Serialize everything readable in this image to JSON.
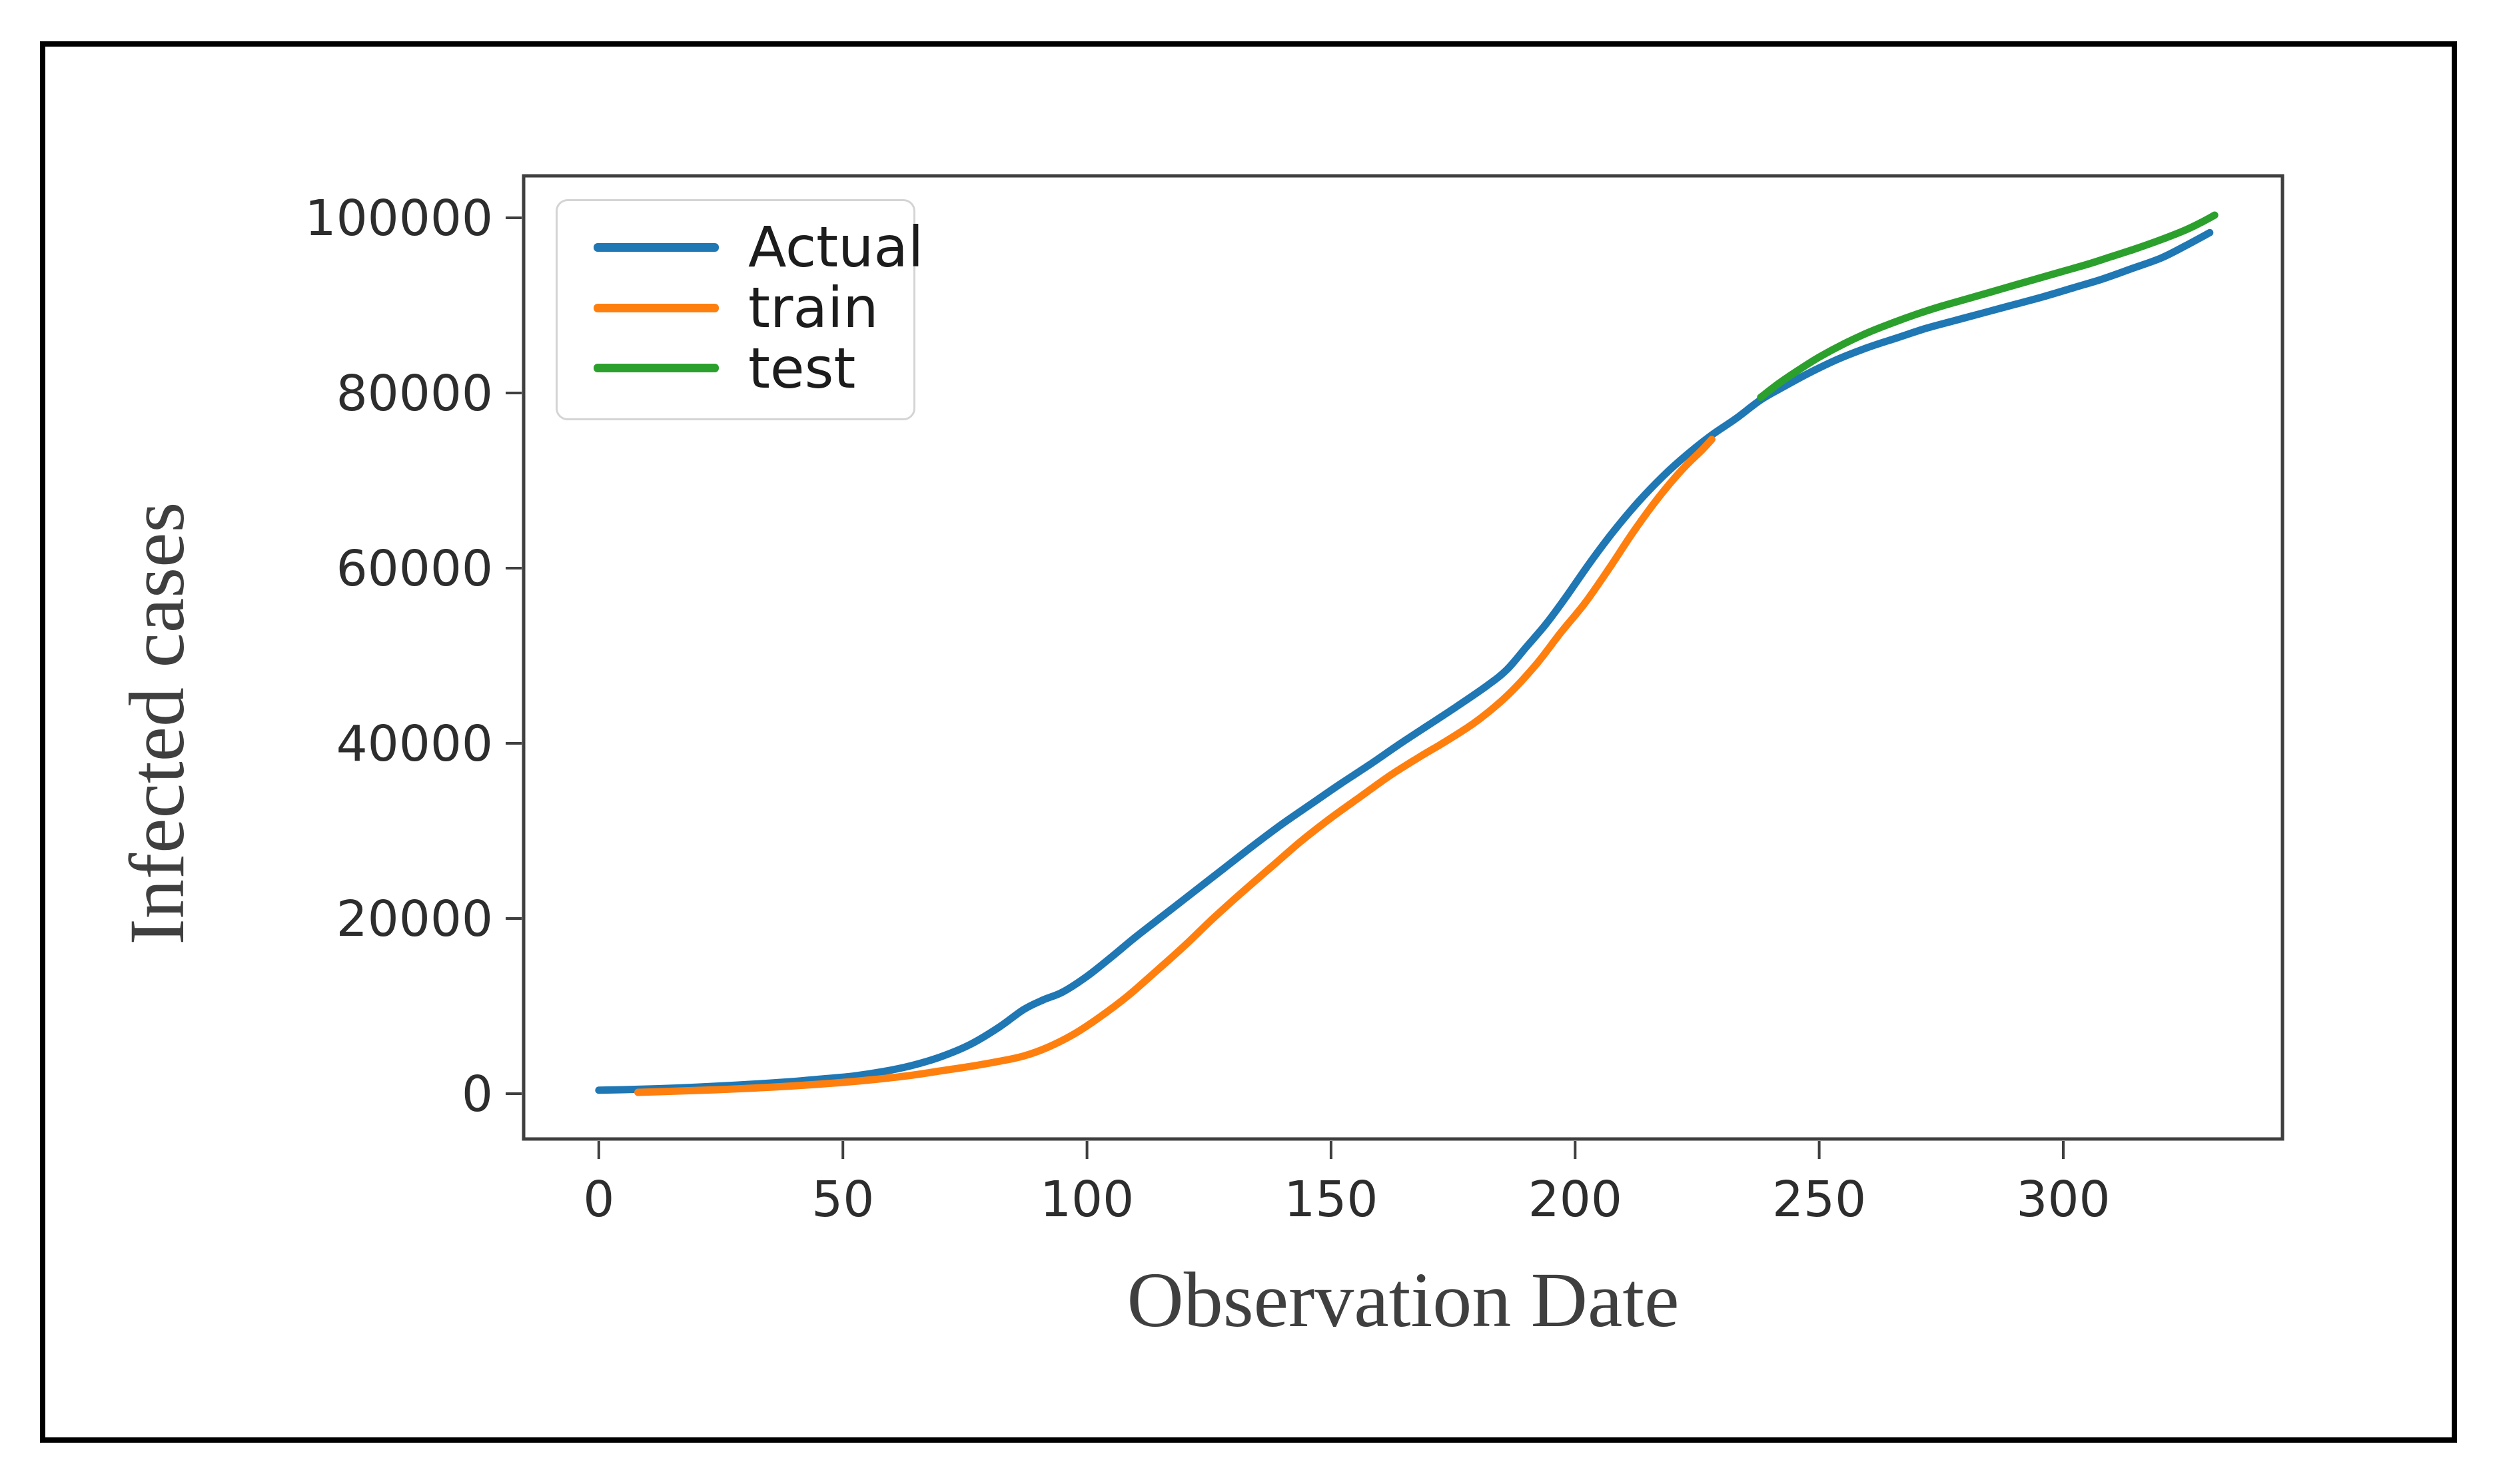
{
  "figure": {
    "background_color": "#ffffff",
    "border_color": "#000000",
    "axis_color": "#3f3f3f",
    "tick_label_color": "#2d2d2d"
  },
  "chart_data": {
    "type": "line",
    "title": "",
    "xlabel": "Observation Date",
    "ylabel": "Infected cases",
    "xlim": [
      -15.4,
      344.9
    ],
    "ylim": [
      -5170,
      104790
    ],
    "xticks": [
      0,
      50,
      100,
      150,
      200,
      250,
      300
    ],
    "yticks": [
      0,
      20000,
      40000,
      60000,
      80000,
      100000
    ],
    "grid": false,
    "legend_position": "upper left",
    "series": [
      {
        "name": "Actual",
        "color": "#1f77b4",
        "x": [
          0,
          8,
          16,
          24,
          32,
          40,
          46,
          52,
          58,
          64,
          70,
          76,
          82,
          87,
          91,
          95,
          100,
          105,
          110,
          116,
          122,
          128,
          134,
          140,
          146,
          152,
          158,
          164,
          170,
          176,
          182,
          186,
          190,
          194,
          198,
          203,
          208,
          213,
          218,
          223,
          228,
          233,
          238,
          243,
          248,
          254,
          260,
          266,
          272,
          278,
          284,
          290,
          296,
          302,
          308,
          314,
          320,
          325,
          330
        ],
        "y": [
          400,
          500,
          650,
          850,
          1100,
          1400,
          1700,
          2000,
          2500,
          3200,
          4200,
          5600,
          7600,
          9600,
          10700,
          11600,
          13400,
          15600,
          17900,
          20500,
          23100,
          25700,
          28300,
          30800,
          33100,
          35400,
          37600,
          39900,
          42100,
          44300,
          46600,
          48400,
          51000,
          53600,
          56600,
          60600,
          64300,
          67600,
          70500,
          73000,
          75200,
          77100,
          79200,
          80800,
          82300,
          83900,
          85200,
          86300,
          87400,
          88300,
          89200,
          90100,
          91000,
          92000,
          93000,
          94200,
          95400,
          96800,
          98300
        ]
      },
      {
        "name": "train",
        "color": "#ff7f0e",
        "x": [
          8,
          16,
          24,
          32,
          40,
          48,
          56,
          64,
          70,
          76,
          82,
          87,
          92,
          97,
          102,
          108,
          114,
          120,
          126,
          132,
          138,
          144,
          150,
          156,
          162,
          168,
          174,
          180,
          186,
          192,
          197,
          202,
          207,
          212,
          217,
          222,
          226,
          228
        ],
        "y": [
          150,
          300,
          450,
          650,
          900,
          1200,
          1600,
          2100,
          2600,
          3100,
          3700,
          4300,
          5300,
          6700,
          8500,
          11000,
          13900,
          16900,
          20100,
          23100,
          26000,
          28900,
          31500,
          33900,
          36300,
          38400,
          40400,
          42600,
          45400,
          49000,
          52600,
          56000,
          60000,
          64200,
          68000,
          71300,
          73500,
          74700
        ]
      },
      {
        "name": "test",
        "color": "#2ca02c",
        "x": [
          238,
          242,
          246,
          250,
          255,
          260,
          265,
          270,
          275,
          280,
          285,
          290,
          295,
          300,
          305,
          310,
          315,
          320,
          325,
          328,
          331
        ],
        "y": [
          79500,
          81200,
          82700,
          84100,
          85600,
          86900,
          88000,
          89000,
          89900,
          90700,
          91500,
          92300,
          93100,
          93900,
          94700,
          95600,
          96500,
          97500,
          98600,
          99400,
          100300
        ]
      }
    ]
  }
}
